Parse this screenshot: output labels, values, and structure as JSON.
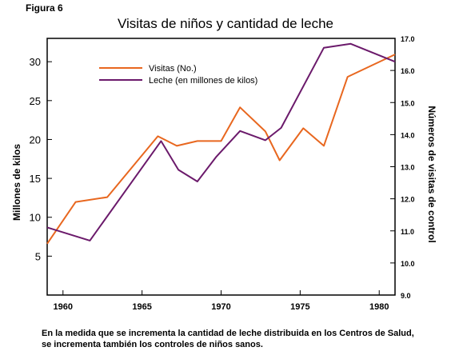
{
  "figure_label": "Figura 6",
  "caption_lines": [
    "En la medida que se incrementa la cantidad de leche distribuida en los Centros de Salud,",
    "se incrementa también los controles de niños sanos."
  ],
  "chart_data": {
    "type": "line",
    "title": "Visitas de niños y cantidad de leche",
    "ylabel_left": "Millones de kilos",
    "ylabel_right": "Números de visitas de control",
    "xlim": [
      1959,
      1981
    ],
    "ylim_left": [
      0,
      33
    ],
    "ylim_right": [
      9.0,
      17.0
    ],
    "x_ticks": [
      1960,
      1965,
      1970,
      1975,
      1980
    ],
    "y_ticks_left": [
      5,
      10,
      15,
      20,
      25,
      30
    ],
    "y_ticks_right": [
      "9.0",
      "10.0",
      "11.0",
      "12.0",
      "13.0",
      "14.0",
      "15.0",
      "16.0",
      "17.0"
    ],
    "series": [
      {
        "name": "Visitas (No.)",
        "color": "#e8671f",
        "axis": "right",
        "x": [
          1959,
          1960.8,
          1962.8,
          1966,
          1967.2,
          1968.5,
          1970,
          1971.2,
          1972.8,
          1973.7,
          1975.2,
          1976.5,
          1978,
          1979.5,
          1981
        ],
        "y": [
          10.6,
          11.9,
          12.05,
          13.95,
          13.65,
          13.8,
          13.8,
          14.85,
          14.1,
          13.2,
          14.2,
          13.65,
          15.8,
          16.15,
          16.5
        ]
      },
      {
        "name": "Leche (en millones de kilos)",
        "color": "#6b1a6b",
        "axis": "left",
        "x": [
          1959,
          1961.7,
          1966.2,
          1967.3,
          1968.5,
          1969.7,
          1971.2,
          1972.8,
          1973.8,
          1976.5,
          1978.2,
          1981
        ],
        "y": [
          8.7,
          7.0,
          19.8,
          16.1,
          14.6,
          17.8,
          21.1,
          19.9,
          21.5,
          31.8,
          32.3,
          30.0
        ]
      }
    ]
  }
}
